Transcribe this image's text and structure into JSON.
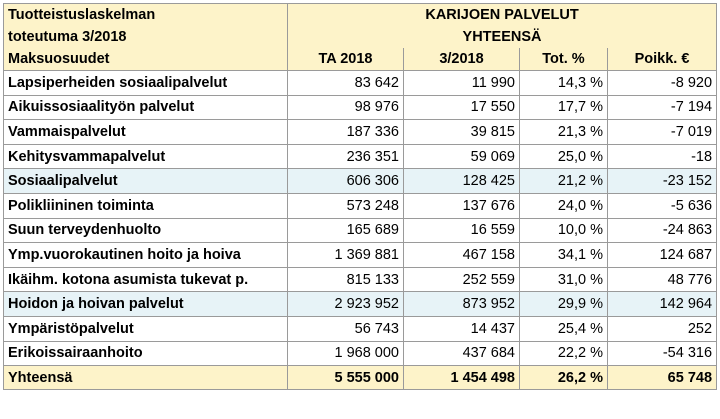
{
  "header": {
    "title_line1": "Tuotteistuslaskelman",
    "title_line2": "toteutuma 3/2018",
    "org_line1": "KARIJOEN PALVELUT",
    "org_line2": "YHTEENSÄ",
    "columns": [
      "Maksuosuudet",
      "TA 2018",
      "3/2018",
      "Tot. %",
      "Poikk. €"
    ]
  },
  "rows": [
    {
      "name": "Lapsiperheiden sosiaalipalvelut",
      "ta": "83 642",
      "tot": "11 990",
      "pct": "14,3 %",
      "poikk": "-8 920",
      "sub": false
    },
    {
      "name": "Aikuissosiaalityön palvelut",
      "ta": "98 976",
      "tot": "17 550",
      "pct": "17,7 %",
      "poikk": "-7 194",
      "sub": false
    },
    {
      "name": "Vammaispalvelut",
      "ta": "187 336",
      "tot": "39 815",
      "pct": "21,3 %",
      "poikk": "-7 019",
      "sub": false
    },
    {
      "name": "Kehitysvammapalvelut",
      "ta": "236 351",
      "tot": "59 069",
      "pct": "25,0 %",
      "poikk": "-18",
      "sub": false
    },
    {
      "name": "Sosiaalipalvelut",
      "ta": "606 306",
      "tot": "128 425",
      "pct": "21,2 %",
      "poikk": "-23 152",
      "sub": true
    },
    {
      "name": "Polikliininen toiminta",
      "ta": "573 248",
      "tot": "137 676",
      "pct": "24,0 %",
      "poikk": "-5 636",
      "sub": false
    },
    {
      "name": "Suun terveydenhuolto",
      "ta": "165 689",
      "tot": "16 559",
      "pct": "10,0 %",
      "poikk": "-24 863",
      "sub": false
    },
    {
      "name": "Ymp.vuorokautinen hoito ja hoiva",
      "ta": "1 369 881",
      "tot": "467 158",
      "pct": "34,1 %",
      "poikk": "124 687",
      "sub": false
    },
    {
      "name": "Ikäihm. kotona asumista tukevat p.",
      "ta": "815 133",
      "tot": "252 559",
      "pct": "31,0 %",
      "poikk": "48 776",
      "sub": false
    },
    {
      "name": "Hoidon ja hoivan palvelut",
      "ta": "2 923 952",
      "tot": "873 952",
      "pct": "29,9 %",
      "poikk": "142 964",
      "sub": true
    },
    {
      "name": "Ympäristöpalvelut",
      "ta": "56 743",
      "tot": "14 437",
      "pct": "25,4 %",
      "poikk": "252",
      "sub": false
    },
    {
      "name": "Erikoissairaanhoito",
      "ta": "1 968 000",
      "tot": "437 684",
      "pct": "22,2 %",
      "poikk": "-54 316",
      "sub": false
    }
  ],
  "total": {
    "name": "Yhteensä",
    "ta": "5 555 000",
    "tot": "1 454 498",
    "pct": "26,2 %",
    "poikk": "65 748"
  }
}
